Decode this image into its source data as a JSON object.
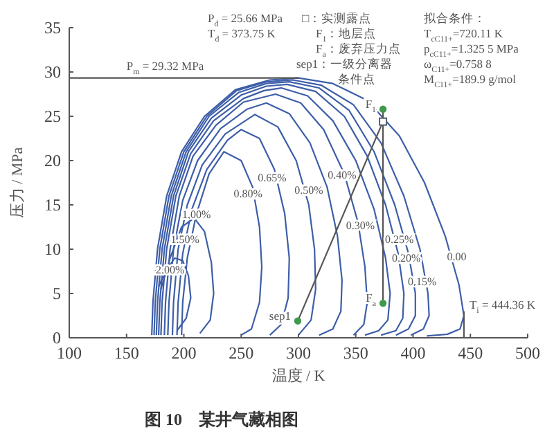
{
  "chart_data": {
    "type": "line",
    "title": "图 10　某井气藏相图",
    "xlabel": "温度 / K",
    "ylabel": "压力 / MPa",
    "xlim": [
      100,
      500
    ],
    "xticks": [
      100,
      150,
      200,
      250,
      300,
      350,
      400,
      450,
      500
    ],
    "ylim": [
      0,
      35
    ],
    "yticks": [
      0,
      5,
      10,
      15,
      20,
      25,
      30,
      35
    ],
    "grid": false,
    "marker": "none",
    "line_style": "solid",
    "series": [
      {
        "color": "#3d5ea8",
        "x": [
          172,
          173,
          177,
          185,
          198,
          218,
          245,
          275,
          300,
          330,
          360,
          388,
          410,
          428,
          440,
          444.36,
          441,
          430,
          412
        ],
        "values": [
          0.3,
          4,
          10,
          16,
          21,
          25,
          28,
          29.1,
          29.32,
          28.7,
          26.8,
          22.8,
          17.5,
          11.5,
          6,
          2.5,
          1,
          0.4,
          0.2
        ]
      },
      {
        "color": "#3d5ea8",
        "x": [
          174,
          175,
          179,
          187,
          200,
          220,
          246,
          272,
          295,
          320,
          348,
          372,
          392,
          406,
          413,
          414,
          409,
          398
        ],
        "values": [
          0.3,
          4,
          10,
          16,
          21,
          25,
          27.9,
          28.9,
          29.1,
          28.5,
          26.3,
          22,
          16,
          10,
          5,
          2.5,
          1,
          0.3
        ]
      },
      {
        "color": "#3d5ea8",
        "x": [
          176,
          177,
          181,
          189,
          202,
          222,
          248,
          272,
          292,
          318,
          344,
          366,
          384,
          396,
          402,
          402,
          396,
          385
        ],
        "values": [
          0.3,
          4,
          10,
          16,
          21,
          25,
          27.7,
          28.7,
          28.9,
          28.2,
          25.7,
          21,
          15,
          9.5,
          5,
          2.5,
          1,
          0.3
        ]
      },
      {
        "color": "#3d5ea8",
        "x": [
          178,
          179,
          183,
          191,
          204,
          224,
          250,
          272,
          290,
          315,
          340,
          360,
          376,
          387,
          392,
          391,
          385,
          372
        ],
        "values": [
          0.3,
          4,
          10,
          16,
          21,
          24.8,
          27.4,
          28.4,
          28.6,
          27.8,
          25,
          20.5,
          15,
          9.5,
          5,
          2.2,
          0.8,
          0.3
        ]
      },
      {
        "color": "#3d5ea8",
        "x": [
          180,
          181,
          185,
          193,
          206,
          226,
          252,
          270,
          285,
          308,
          330,
          350,
          366,
          376,
          380,
          378,
          370,
          358
        ],
        "values": [
          0.3,
          4,
          10,
          16,
          20.8,
          24.5,
          27,
          27.9,
          28.2,
          27.3,
          24.5,
          20,
          14.5,
          9,
          5,
          2,
          0.8,
          0.3
        ]
      },
      {
        "color": "#3d5ea8",
        "x": [
          183,
          184,
          188,
          196,
          208,
          228,
          252,
          280,
          302,
          322,
          340,
          352,
          358,
          360,
          357,
          348
        ],
        "values": [
          0.3,
          4,
          10,
          16,
          20.5,
          24,
          26.6,
          27.5,
          26.5,
          23.5,
          18.5,
          13,
          8,
          4,
          1.5,
          0.3
        ]
      },
      {
        "color": "#3d5ea8",
        "x": [
          186,
          187,
          191,
          199,
          212,
          232,
          255,
          272,
          292,
          310,
          325,
          334,
          338,
          337,
          330,
          318
        ],
        "values": [
          0.3,
          4,
          10,
          15.5,
          20,
          23.6,
          25.8,
          26.5,
          25.3,
          22,
          17,
          11.5,
          6.5,
          3,
          1,
          0.3
        ]
      },
      {
        "color": "#3d5ea8",
        "x": [
          190,
          191,
          195,
          203,
          216,
          236,
          262,
          282,
          298,
          309,
          314,
          315,
          311,
          300
        ],
        "values": [
          0.3,
          4,
          10,
          15,
          19.5,
          23,
          25.2,
          23.8,
          20,
          15,
          10,
          5.5,
          2,
          0.3
        ]
      },
      {
        "color": "#3d5ea8",
        "x": [
          194,
          195,
          199,
          207,
          220,
          238,
          250,
          266,
          279,
          288,
          292,
          291,
          285,
          275
        ],
        "values": [
          0.3,
          4,
          9.5,
          14.5,
          19,
          22.3,
          23.5,
          22.5,
          19,
          14,
          9,
          4.5,
          1.5,
          0.3
        ]
      },
      {
        "color": "#3d5ea8",
        "x": [
          198,
          199,
          203,
          211,
          222,
          235,
          250,
          260,
          266,
          268,
          266,
          259,
          250
        ],
        "values": [
          0.3,
          4,
          9,
          14,
          18.5,
          21,
          20,
          17,
          12.5,
          8,
          4,
          1,
          0.3
        ]
      },
      {
        "color": "#3d5ea8",
        "x": [
          180,
          188,
          198,
          209,
          218,
          224,
          226,
          223,
          214
        ],
        "values": [
          5.5,
          9,
          12.5,
          13.5,
          12,
          8.5,
          5,
          2,
          0.5
        ]
      },
      {
        "color": "#3d5ea8",
        "x": [
          178,
          184,
          192,
          199,
          204,
          206,
          202,
          194
        ],
        "values": [
          5.8,
          7.5,
          9,
          8.7,
          7,
          4.5,
          2.2,
          0.8
        ]
      },
      {
        "color": "#555555",
        "x": [
          100,
          300
        ],
        "values": [
          29.32,
          29.32
        ]
      },
      {
        "color": "#555555",
        "x": [
          444.36,
          444.36
        ],
        "values": [
          0,
          3
        ]
      },
      {
        "color": "#555555",
        "x": [
          373.75,
          373.75
        ],
        "values": [
          25.8,
          3.9
        ]
      },
      {
        "color": "#555555",
        "x": [
          299.4,
          373.75
        ],
        "values": [
          1.9,
          24.4
        ]
      },
      {
        "type": "scatter",
        "marker": "square",
        "color": "#556070",
        "x": [
          373.75
        ],
        "values": [
          24.4
        ]
      },
      {
        "type": "scatter",
        "marker": "circle",
        "color": "#3f9a4c",
        "x": [
          373.75,
          373.75,
          299.4
        ],
        "values": [
          25.8,
          3.9,
          1.9
        ]
      }
    ],
    "annotations": [
      "P$_{d}$ = 25.66 MPa",
      "T$_{d}$ = 373.75 K",
      "□：实测露点",
      "F$_{1}$：地层点",
      "F$_{a}$：废弃压力点",
      "sep1：一级分离器",
      "条件点",
      "拟合条件：",
      "T$_{cC11+}$=720.11 K",
      "p$_{cC11+}$=1.325 5 MPa",
      "ω$_{C11+}$=0.758 8",
      "M$_{C11+}$=189.9 g/mol",
      {
        "text": "P$_{m}$ = 29.32 MPa",
        "x": 150,
        "y": 29.32
      },
      {
        "text": "T$_{i}$ = 444.36 K",
        "x": 444.36,
        "y": 3
      },
      {
        "text": "F$_{1}$",
        "x": 373.75,
        "y": 25.8
      },
      {
        "text": "F$_{a}$",
        "x": 373.75,
        "y": 3.9
      },
      {
        "text": "sep1",
        "x": 299.4,
        "y": 1.9
      },
      {
        "text": "2.00%",
        "x": 188,
        "y": 7.7
      },
      {
        "text": "1.50%",
        "x": 201,
        "y": 11.2
      },
      {
        "text": "1.00%",
        "x": 211,
        "y": 14
      },
      {
        "text": "0.80%",
        "x": 256,
        "y": 16.3
      },
      {
        "text": "0.65%",
        "x": 277,
        "y": 18.1
      },
      {
        "text": "0.50%",
        "x": 309,
        "y": 16.7
      },
      {
        "text": "0.40%",
        "x": 338,
        "y": 18.4
      },
      {
        "text": "0.30%",
        "x": 354,
        "y": 12.7
      },
      {
        "text": "0.25%",
        "x": 388,
        "y": 11.2
      },
      {
        "text": "0.20%",
        "x": 394,
        "y": 9.1
      },
      {
        "text": "0.15%",
        "x": 408,
        "y": 6.4
      },
      {
        "text": "0.00",
        "x": 438,
        "y": 9.2
      }
    ]
  }
}
